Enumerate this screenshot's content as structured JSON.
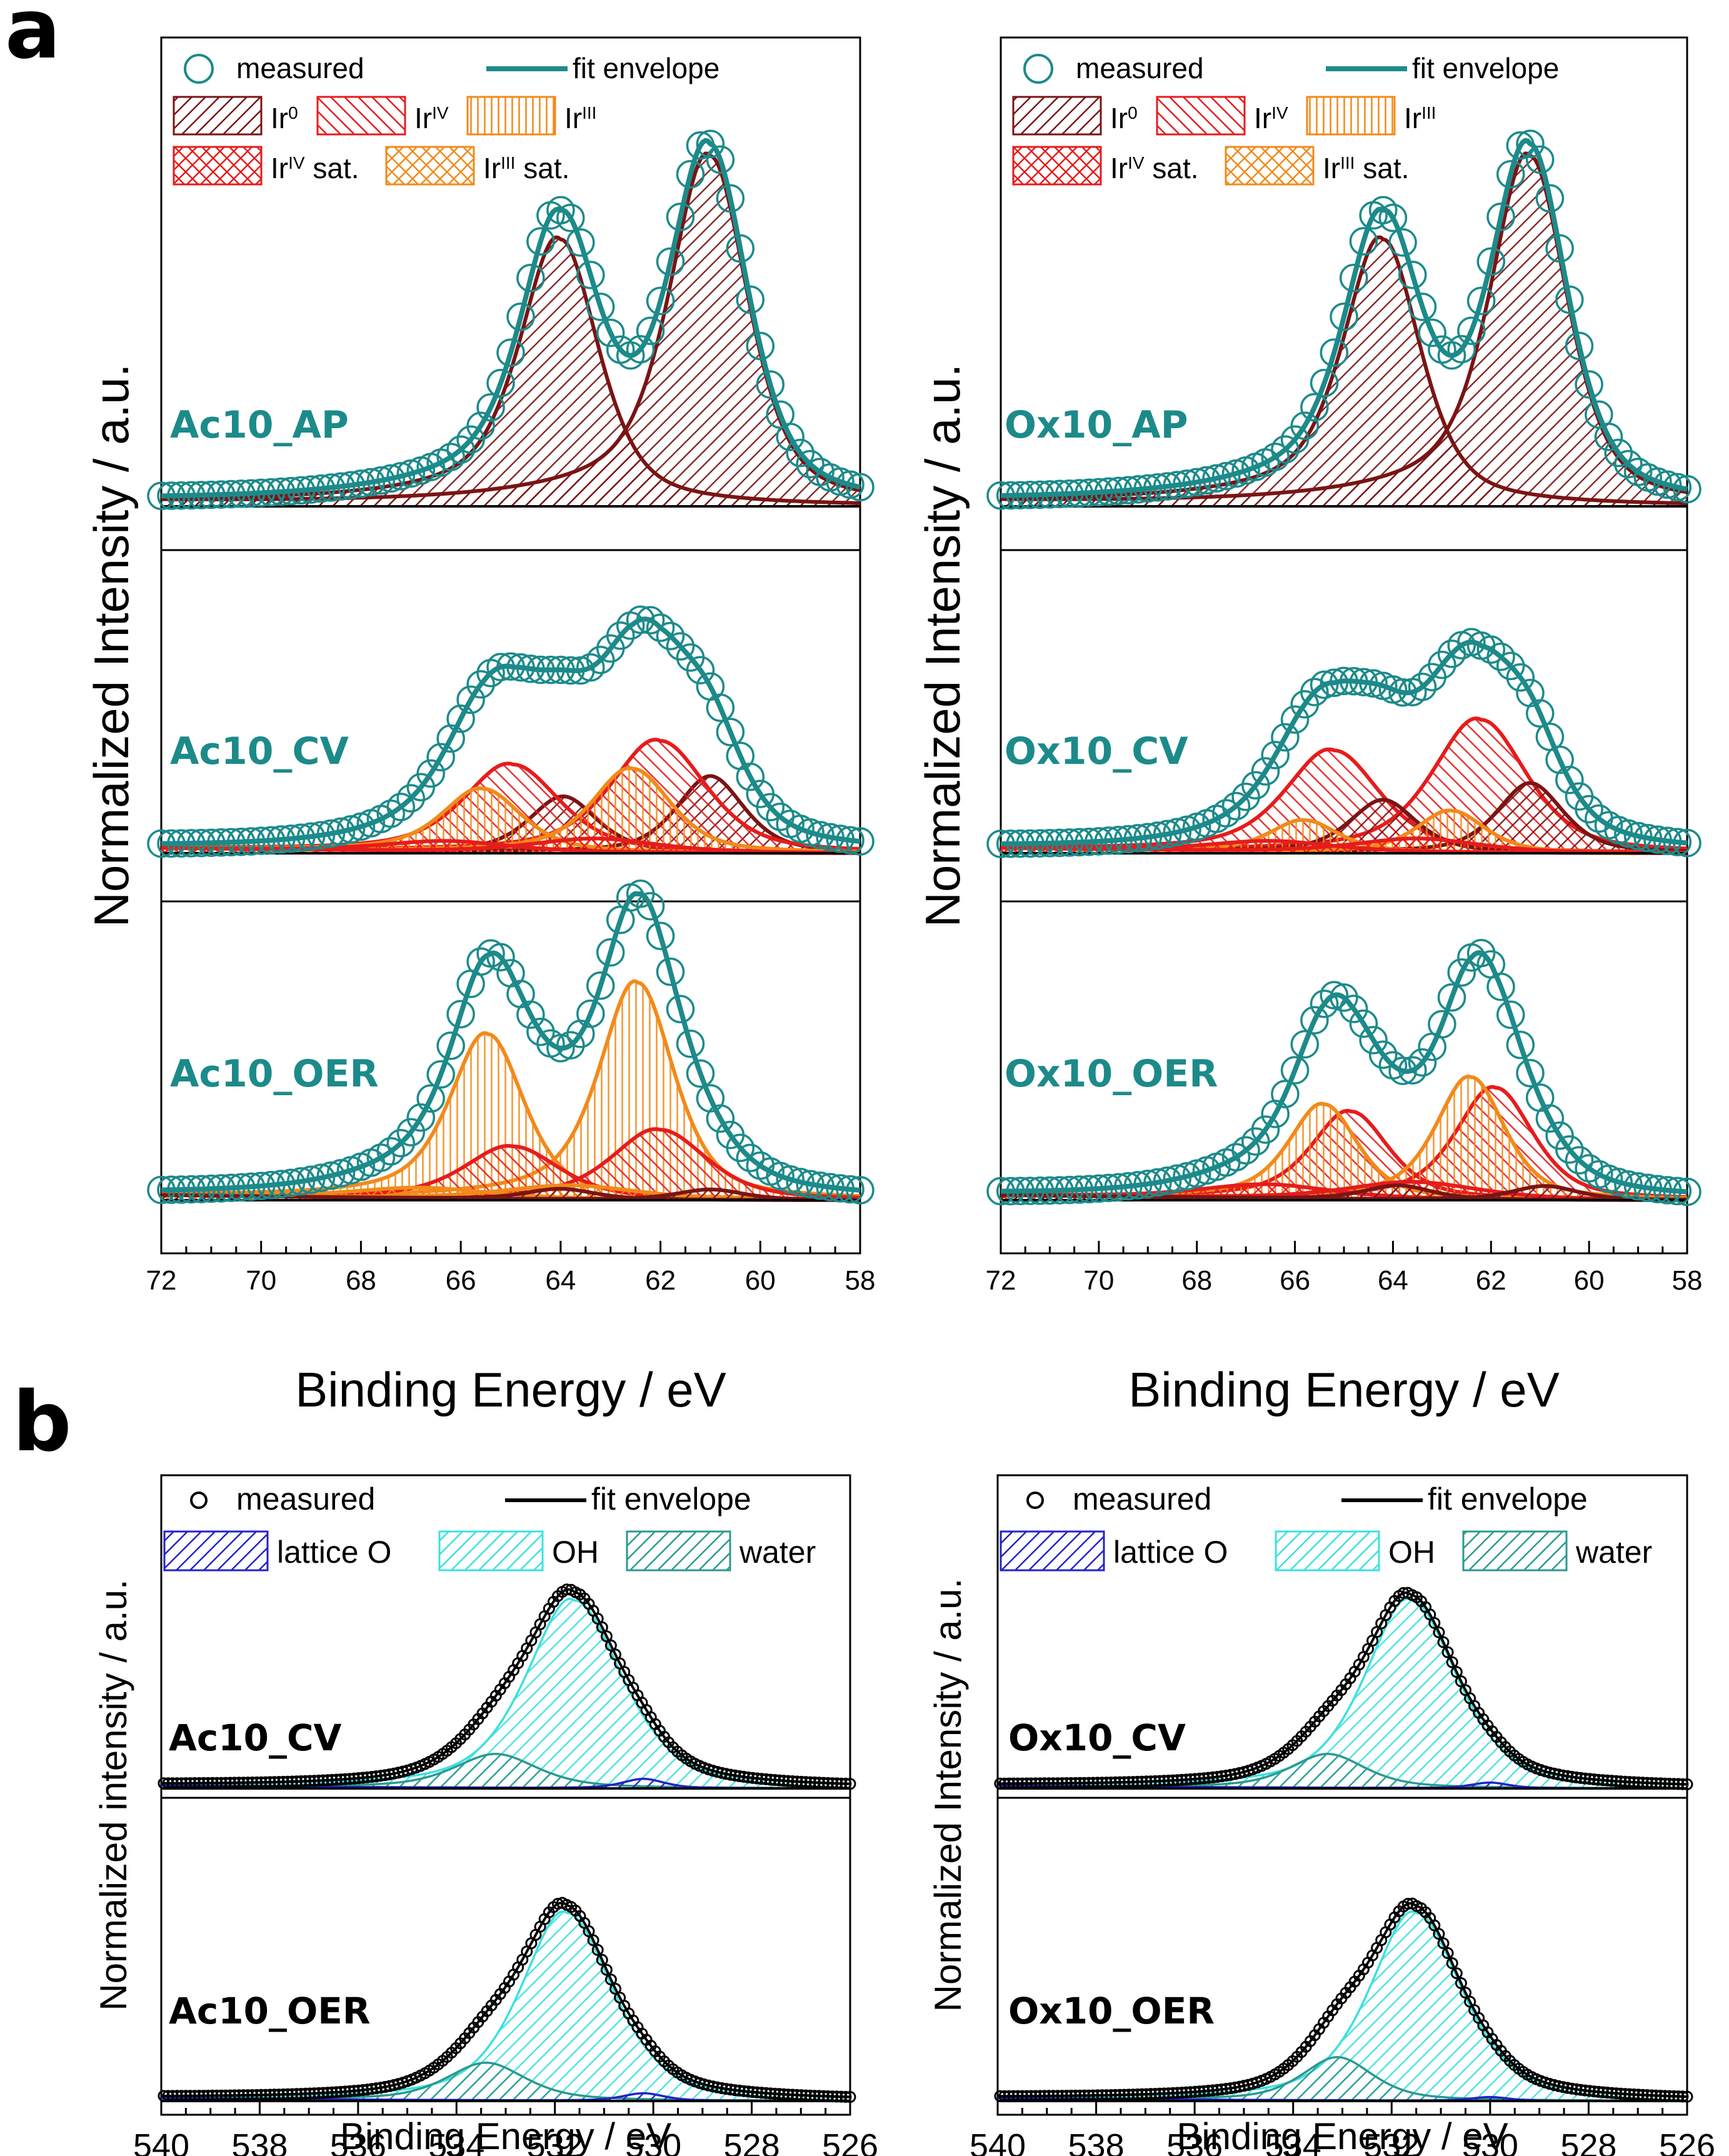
{
  "panel_labels": [
    "a",
    "b"
  ],
  "colors": {
    "teal": "#1d8a8a",
    "ir0": "#7a1414",
    "ir4": "#e61c1c",
    "ir3": "#f28a1a",
    "lattice": "#2323c8",
    "oh": "#3de0e0",
    "water": "#2a9a90",
    "black": "#000000"
  },
  "chart_data": [
    {
      "id": "a-left",
      "type": "line",
      "xlabel": "Binding Energy / eV",
      "ylabel": "Normalized Intensity / a.u.",
      "xlim": [
        72,
        58
      ],
      "xticks": [
        72,
        70,
        68,
        66,
        64,
        62,
        60,
        58
      ],
      "legend": {
        "rows": [
          [
            {
              "label": "measured",
              "kind": "circle",
              "color": "teal"
            },
            {
              "label": "fit envelope",
              "kind": "line",
              "color": "teal"
            }
          ],
          [
            {
              "label": "Ir",
              "sup": "0",
              "kind": "hatch",
              "color": "ir0"
            },
            {
              "label": "Ir",
              "sup": "IV",
              "kind": "hatch",
              "color": "ir4"
            },
            {
              "label": "Ir",
              "sup": "III",
              "kind": "hatch",
              "color": "ir3"
            }
          ],
          [
            {
              "label": "Ir",
              "sup": "IV",
              "suffix": " sat.",
              "kind": "cross",
              "color": "ir4"
            },
            {
              "label": "Ir",
              "sup": "III",
              "suffix": " sat.",
              "kind": "cross",
              "color": "ir3"
            }
          ]
        ]
      },
      "spectra": [
        {
          "label": "Ac10_AP",
          "scale": 1.0,
          "components": [
            {
              "name": "Ir0 4f7/2",
              "center": 61.0,
              "height": 1.0,
              "width": 0.9,
              "tail": 2.6,
              "color": "ir0",
              "hatch": "diag"
            },
            {
              "name": "Ir0 4f5/2",
              "center": 64.0,
              "height": 0.76,
              "width": 0.9,
              "tail": 2.6,
              "color": "ir0",
              "hatch": "diag"
            }
          ]
        },
        {
          "label": "Ac10_CV",
          "scale": 1.0,
          "components": [
            {
              "name": "Ir0 4f7/2",
              "center": 61.0,
              "height": 0.22,
              "width": 0.8,
              "tail": 0,
              "color": "ir0",
              "hatch": "diag"
            },
            {
              "name": "Ir0 4f5/2",
              "center": 63.95,
              "height": 0.16,
              "width": 0.8,
              "tail": 0,
              "color": "ir0",
              "hatch": "diag"
            },
            {
              "name": "IrIV 4f7/2",
              "center": 62.0,
              "height": 0.32,
              "width": 1.1,
              "tail": 1.6,
              "color": "ir4",
              "hatch": "back"
            },
            {
              "name": "IrIV 4f5/2",
              "center": 64.95,
              "height": 0.25,
              "width": 1.1,
              "tail": 1.6,
              "color": "ir4",
              "hatch": "back"
            },
            {
              "name": "IrIII 4f7/2",
              "center": 62.55,
              "height": 0.24,
              "width": 0.9,
              "tail": 1.6,
              "color": "ir3",
              "hatch": "vert"
            },
            {
              "name": "IrIII 4f5/2",
              "center": 65.55,
              "height": 0.18,
              "width": 0.9,
              "tail": 1.6,
              "color": "ir3",
              "hatch": "vert"
            },
            {
              "name": "IrIV sat. 1",
              "center": 63.3,
              "height": 0.04,
              "width": 1.5,
              "tail": 0,
              "color": "ir4",
              "hatch": "cross"
            },
            {
              "name": "IrIV sat. 2",
              "center": 66.3,
              "height": 0.03,
              "width": 1.5,
              "tail": 0,
              "color": "ir4",
              "hatch": "cross"
            }
          ]
        },
        {
          "label": "Ac10_OER",
          "scale": 1.0,
          "components": [
            {
              "name": "IrIII 4f7/2",
              "center": 62.45,
              "height": 0.62,
              "width": 0.85,
              "tail": 1.7,
              "color": "ir3",
              "hatch": "vert"
            },
            {
              "name": "IrIII 4f5/2",
              "center": 65.45,
              "height": 0.47,
              "width": 0.85,
              "tail": 1.7,
              "color": "ir3",
              "hatch": "vert"
            },
            {
              "name": "IrIV 4f7/2",
              "center": 62.0,
              "height": 0.2,
              "width": 1.1,
              "tail": 1.2,
              "color": "ir4",
              "hatch": "back"
            },
            {
              "name": "IrIV 4f5/2",
              "center": 64.95,
              "height": 0.15,
              "width": 1.1,
              "tail": 1.2,
              "color": "ir4",
              "hatch": "back"
            },
            {
              "name": "IrIII sat. 1",
              "center": 63.8,
              "height": 0.04,
              "width": 1.6,
              "tail": 0,
              "color": "ir3",
              "hatch": "cross"
            },
            {
              "name": "IrIII sat. 2",
              "center": 66.8,
              "height": 0.03,
              "width": 1.6,
              "tail": 0,
              "color": "ir3",
              "hatch": "cross"
            },
            {
              "name": "Ir0 4f7/2",
              "center": 61.0,
              "height": 0.03,
              "width": 0.8,
              "tail": 0,
              "color": "ir0",
              "hatch": "diag"
            },
            {
              "name": "Ir0 4f5/2",
              "center": 64.0,
              "height": 0.03,
              "width": 0.8,
              "tail": 0,
              "color": "ir0",
              "hatch": "diag"
            }
          ]
        }
      ]
    },
    {
      "id": "a-right",
      "type": "line",
      "xlabel": "Binding Energy / eV",
      "ylabel": "Normalized Intensity / a.u.",
      "xlim": [
        72,
        58
      ],
      "xticks": [
        72,
        70,
        68,
        66,
        64,
        62,
        60,
        58
      ],
      "legend": {
        "rows": [
          [
            {
              "label": "measured",
              "kind": "circle",
              "color": "teal"
            },
            {
              "label": "fit envelope",
              "kind": "line",
              "color": "teal"
            }
          ],
          [
            {
              "label": "Ir",
              "sup": "0",
              "kind": "hatch",
              "color": "ir0"
            },
            {
              "label": "Ir",
              "sup": "IV",
              "kind": "hatch",
              "color": "ir4"
            },
            {
              "label": "Ir",
              "sup": "III",
              "kind": "hatch",
              "color": "ir3"
            }
          ],
          [
            {
              "label": "Ir",
              "sup": "IV",
              "suffix": " sat.",
              "kind": "cross",
              "color": "ir4"
            },
            {
              "label": "Ir",
              "sup": "III",
              "suffix": " sat.",
              "kind": "cross",
              "color": "ir3"
            }
          ]
        ]
      },
      "spectra": [
        {
          "label": "Ox10_AP",
          "scale": 1.0,
          "components": [
            {
              "name": "Ir0 4f7/2",
              "center": 61.2,
              "height": 1.0,
              "width": 0.9,
              "tail": 2.6,
              "color": "ir0",
              "hatch": "diag"
            },
            {
              "name": "Ir0 4f5/2",
              "center": 64.2,
              "height": 0.76,
              "width": 0.9,
              "tail": 2.6,
              "color": "ir0",
              "hatch": "diag"
            }
          ]
        },
        {
          "label": "Ox10_CV",
          "scale": 1.0,
          "components": [
            {
              "name": "IrIV 4f7/2",
              "center": 62.2,
              "height": 0.38,
              "width": 1.1,
              "tail": 1.6,
              "color": "ir4",
              "hatch": "back"
            },
            {
              "name": "IrIV 4f5/2",
              "center": 65.2,
              "height": 0.29,
              "width": 1.1,
              "tail": 1.6,
              "color": "ir4",
              "hatch": "back"
            },
            {
              "name": "Ir0 4f7/2",
              "center": 61.2,
              "height": 0.2,
              "width": 0.8,
              "tail": 0,
              "color": "ir0",
              "hatch": "diag"
            },
            {
              "name": "Ir0 4f5/2",
              "center": 64.2,
              "height": 0.15,
              "width": 0.8,
              "tail": 0,
              "color": "ir0",
              "hatch": "diag"
            },
            {
              "name": "IrIII 4f7/2",
              "center": 62.8,
              "height": 0.12,
              "width": 0.8,
              "tail": 0.8,
              "color": "ir3",
              "hatch": "vert"
            },
            {
              "name": "IrIII 4f5/2",
              "center": 65.8,
              "height": 0.09,
              "width": 0.8,
              "tail": 0.8,
              "color": "ir3",
              "hatch": "vert"
            },
            {
              "name": "IrIV sat. 1",
              "center": 63.5,
              "height": 0.04,
              "width": 1.5,
              "tail": 0,
              "color": "ir4",
              "hatch": "cross"
            },
            {
              "name": "IrIV sat. 2",
              "center": 66.5,
              "height": 0.03,
              "width": 1.5,
              "tail": 0,
              "color": "ir4",
              "hatch": "cross"
            }
          ]
        },
        {
          "label": "Ox10_OER",
          "scale": 1.0,
          "components": [
            {
              "name": "IrIV 4f7/2",
              "center": 61.9,
              "height": 0.32,
              "width": 0.9,
              "tail": 1.5,
              "color": "ir4",
              "hatch": "back"
            },
            {
              "name": "IrIV 4f5/2",
              "center": 64.85,
              "height": 0.25,
              "width": 0.9,
              "tail": 1.5,
              "color": "ir4",
              "hatch": "back"
            },
            {
              "name": "IrIII 4f7/2",
              "center": 62.4,
              "height": 0.35,
              "width": 0.8,
              "tail": 1.4,
              "color": "ir3",
              "hatch": "vert"
            },
            {
              "name": "IrIII 4f5/2",
              "center": 65.4,
              "height": 0.27,
              "width": 0.8,
              "tail": 1.4,
              "color": "ir3",
              "hatch": "vert"
            },
            {
              "name": "IrIV sat. 1",
              "center": 63.6,
              "height": 0.05,
              "width": 1.6,
              "tail": 0,
              "color": "ir4",
              "hatch": "cross"
            },
            {
              "name": "IrIV sat. 2",
              "center": 66.6,
              "height": 0.04,
              "width": 1.6,
              "tail": 0,
              "color": "ir4",
              "hatch": "cross"
            },
            {
              "name": "Ir0 4f7/2",
              "center": 60.9,
              "height": 0.04,
              "width": 0.8,
              "tail": 0,
              "color": "ir0",
              "hatch": "diag"
            },
            {
              "name": "Ir0 4f5/2",
              "center": 63.9,
              "height": 0.04,
              "width": 0.8,
              "tail": 0,
              "color": "ir0",
              "hatch": "diag"
            }
          ]
        }
      ]
    },
    {
      "id": "b-left",
      "type": "line",
      "xlabel": "Binding Energy / eV",
      "ylabel": "Normalized intensity / a.u.",
      "xlim": [
        540,
        526
      ],
      "xticks": [
        540,
        538,
        536,
        534,
        532,
        530,
        528,
        526
      ],
      "legend": {
        "rows": [
          [
            {
              "label": "measured",
              "kind": "circle",
              "color": "black"
            },
            {
              "label": "fit envelope",
              "kind": "line",
              "color": "black"
            }
          ],
          [
            {
              "label": "lattice O",
              "kind": "hatch",
              "color": "lattice"
            },
            {
              "label": "OH",
              "kind": "hatch",
              "color": "oh"
            },
            {
              "label": "water",
              "kind": "hatch",
              "color": "water"
            }
          ]
        ]
      },
      "spectra": [
        {
          "label": "Ac10_CV",
          "scale": 1.0,
          "components": [
            {
              "name": "OH",
              "center": 531.6,
              "height": 1.0,
              "width": 1.15,
              "tail": 0.5,
              "color": "oh",
              "hatch": "diag"
            },
            {
              "name": "water",
              "center": 533.2,
              "height": 0.18,
              "width": 1.0,
              "tail": 0,
              "color": "water",
              "hatch": "diag"
            },
            {
              "name": "lattice O",
              "center": 530.2,
              "height": 0.05,
              "width": 0.5,
              "tail": 0,
              "color": "lattice",
              "hatch": "diag"
            }
          ]
        },
        {
          "label": "Ac10_OER",
          "scale": 1.0,
          "components": [
            {
              "name": "OH",
              "center": 531.75,
              "height": 1.0,
              "width": 1.1,
              "tail": 0.5,
              "color": "oh",
              "hatch": "diag"
            },
            {
              "name": "water",
              "center": 533.4,
              "height": 0.2,
              "width": 0.95,
              "tail": 0,
              "color": "water",
              "hatch": "diag"
            },
            {
              "name": "lattice O",
              "center": 530.2,
              "height": 0.04,
              "width": 0.5,
              "tail": 0,
              "color": "lattice",
              "hatch": "diag"
            }
          ]
        }
      ]
    },
    {
      "id": "b-right",
      "type": "line",
      "xlabel": "Binding Energy / eV",
      "ylabel": "Normalized Intensity / a.u.",
      "xlim": [
        540,
        526
      ],
      "xticks": [
        540,
        538,
        536,
        534,
        532,
        530,
        528,
        526
      ],
      "legend": {
        "rows": [
          [
            {
              "label": "measured",
              "kind": "circle",
              "color": "black"
            },
            {
              "label": "fit envelope",
              "kind": "line",
              "color": "black"
            }
          ],
          [
            {
              "label": "lattice O",
              "kind": "hatch",
              "color": "lattice"
            },
            {
              "label": "OH",
              "kind": "hatch",
              "color": "oh"
            },
            {
              "label": "water",
              "kind": "hatch",
              "color": "water"
            }
          ]
        ]
      },
      "spectra": [
        {
          "label": "Ox10_CV",
          "scale": 1.0,
          "components": [
            {
              "name": "OH",
              "center": 531.6,
              "height": 1.0,
              "width": 1.1,
              "tail": 0.5,
              "color": "oh",
              "hatch": "diag"
            },
            {
              "name": "water",
              "center": 533.3,
              "height": 0.18,
              "width": 0.9,
              "tail": 0,
              "color": "water",
              "hatch": "diag"
            },
            {
              "name": "lattice O",
              "center": 530.0,
              "height": 0.03,
              "width": 0.45,
              "tail": 0,
              "color": "lattice",
              "hatch": "diag"
            }
          ]
        },
        {
          "label": "Ox10_OER",
          "scale": 1.0,
          "components": [
            {
              "name": "OH",
              "center": 531.5,
              "height": 1.0,
              "width": 1.1,
              "tail": 0.5,
              "color": "oh",
              "hatch": "diag"
            },
            {
              "name": "water",
              "center": 533.1,
              "height": 0.23,
              "width": 0.85,
              "tail": 0,
              "color": "water",
              "hatch": "diag"
            },
            {
              "name": "lattice O",
              "center": 530.0,
              "height": 0.02,
              "width": 0.45,
              "tail": 0,
              "color": "lattice",
              "hatch": "diag"
            }
          ]
        }
      ]
    }
  ]
}
